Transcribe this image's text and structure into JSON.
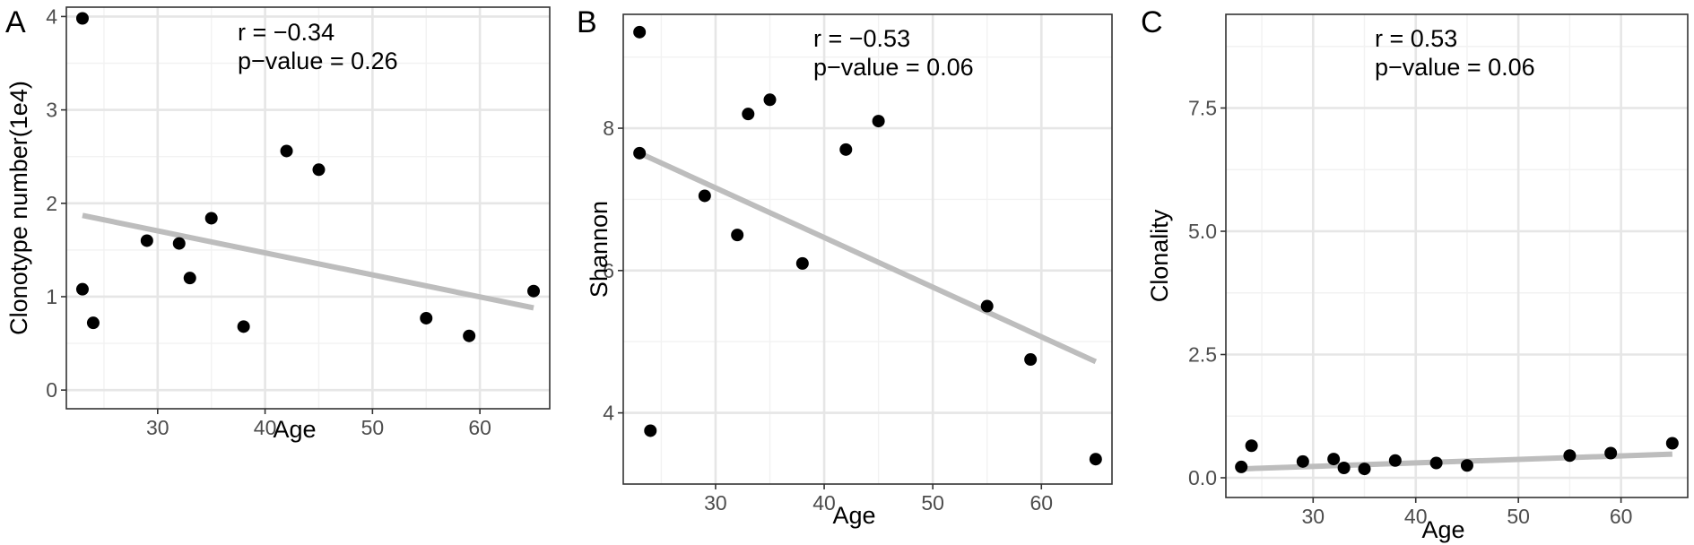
{
  "colors": {
    "point": "#000000",
    "fit_line": "#bdbdbd",
    "grid": "#e6e6e6",
    "background": "#ffffff"
  },
  "chart_data": [
    {
      "type": "scatter",
      "panel_label": "A",
      "xlabel": "Age",
      "ylabel": "Clonotype number(1e4)",
      "annotation": [
        "r = −0.34",
        "p−value = 0.26"
      ],
      "xlim": [
        21.5,
        66.5
      ],
      "ylim": [
        -0.2,
        4.1
      ],
      "xticks": [
        30,
        40,
        50,
        60
      ],
      "yticks": [
        0,
        1,
        2,
        3,
        4
      ],
      "xtick_labels": [
        "30",
        "40",
        "50",
        "60"
      ],
      "ytick_labels": [
        "0",
        "1",
        "2",
        "3",
        "4"
      ],
      "grid": true,
      "x": [
        23,
        23,
        24,
        29,
        32,
        33,
        35,
        38,
        42,
        45,
        55,
        59,
        65
      ],
      "y": [
        3.98,
        1.08,
        0.72,
        1.6,
        1.57,
        1.2,
        1.84,
        0.68,
        2.56,
        2.36,
        0.77,
        0.58,
        1.06
      ],
      "fit": {
        "x": [
          23,
          65
        ],
        "y": [
          1.87,
          0.88
        ]
      }
    },
    {
      "type": "scatter",
      "panel_label": "B",
      "xlabel": "Age",
      "ylabel": "Shannon",
      "annotation": [
        "r = −0.53",
        "p−value = 0.06"
      ],
      "xlim": [
        21.5,
        66.5
      ],
      "ylim": [
        3.0,
        9.6
      ],
      "xticks": [
        30,
        40,
        50,
        60
      ],
      "yticks": [
        4,
        6,
        8
      ],
      "xtick_labels": [
        "30",
        "40",
        "50",
        "60"
      ],
      "ytick_labels": [
        "4",
        "6",
        "8"
      ],
      "grid": true,
      "x": [
        23,
        23,
        24,
        29,
        32,
        33,
        35,
        38,
        42,
        45,
        55,
        59,
        65
      ],
      "y": [
        9.35,
        7.65,
        3.75,
        7.05,
        6.5,
        8.2,
        8.4,
        6.1,
        7.7,
        8.1,
        5.5,
        4.75,
        3.35
      ],
      "fit": {
        "x": [
          23,
          65
        ],
        "y": [
          7.65,
          4.72
        ]
      }
    },
    {
      "type": "scatter",
      "panel_label": "C",
      "xlabel": "Age",
      "ylabel": "Clonality",
      "annotation": [
        "r = 0.53",
        "p−value = 0.06"
      ],
      "xlim": [
        21.5,
        66.5
      ],
      "ylim": [
        -0.4,
        9.4
      ],
      "xticks": [
        30,
        40,
        50,
        60
      ],
      "yticks": [
        0,
        2.5,
        5,
        7.5
      ],
      "xtick_labels": [
        "30",
        "40",
        "50",
        "60"
      ],
      "ytick_labels": [
        "0.0",
        "2.5",
        "5.0",
        "7.5"
      ],
      "grid": true,
      "x": [
        23,
        24,
        29,
        32,
        33,
        35,
        38,
        42,
        45,
        55,
        59,
        65
      ],
      "y": [
        0.22,
        0.65,
        0.33,
        0.38,
        0.2,
        0.18,
        0.35,
        0.3,
        0.25,
        0.45,
        0.5,
        0.7
      ],
      "fit": {
        "x": [
          23,
          65
        ],
        "y": [
          0.18,
          0.48
        ]
      }
    }
  ]
}
